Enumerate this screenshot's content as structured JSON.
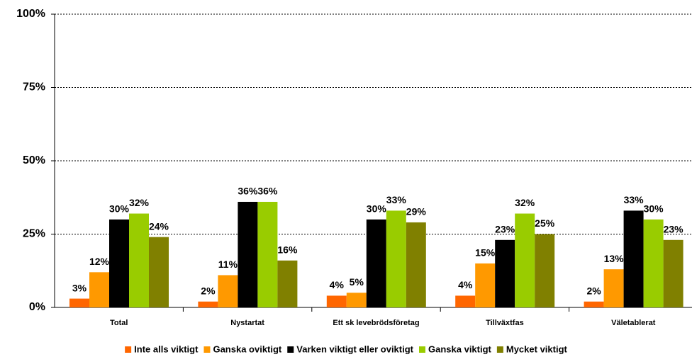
{
  "chart_data": {
    "type": "bar",
    "categories": [
      "Total",
      "Nystartat",
      "Ett sk levebrödsföretag",
      "Tillväxtfas",
      "Väletablerat"
    ],
    "series": [
      {
        "name": "Inte alls viktigt",
        "color": "#ff6600",
        "values": [
          3,
          2,
          4,
          4,
          2
        ],
        "value_labels": [
          "3%",
          "2%",
          "4%",
          "4%",
          "2%"
        ]
      },
      {
        "name": "Ganska oviktigt",
        "color": "#ff9900",
        "values": [
          12,
          11,
          5,
          15,
          13
        ],
        "value_labels": [
          "12%",
          "11%",
          "5%",
          "15%",
          "13%"
        ]
      },
      {
        "name": "Varken viktigt eller oviktigt",
        "color": "#000000",
        "values": [
          30,
          36,
          30,
          23,
          33
        ],
        "value_labels": [
          "30%",
          "36%",
          "30%",
          "23%",
          "33%"
        ]
      },
      {
        "name": "Ganska viktigt",
        "color": "#99cc00",
        "values": [
          32,
          36,
          33,
          32,
          30
        ],
        "value_labels": [
          "32%",
          "36%",
          "33%",
          "32%",
          "30%"
        ]
      },
      {
        "name": "Mycket viktigt",
        "color": "#808000",
        "values": [
          24,
          16,
          29,
          25,
          23
        ],
        "value_labels": [
          "24%",
          "16%",
          "29%",
          "25%",
          "23%"
        ]
      }
    ],
    "ylim": [
      0,
      100
    ],
    "yticks": [
      {
        "value": 0,
        "label": "0%"
      },
      {
        "value": 25,
        "label": "25%"
      },
      {
        "value": 50,
        "label": "50%"
      },
      {
        "value": 75,
        "label": "75%"
      },
      {
        "value": 100,
        "label": "100%"
      }
    ],
    "grid": true,
    "legend": "bottom"
  }
}
